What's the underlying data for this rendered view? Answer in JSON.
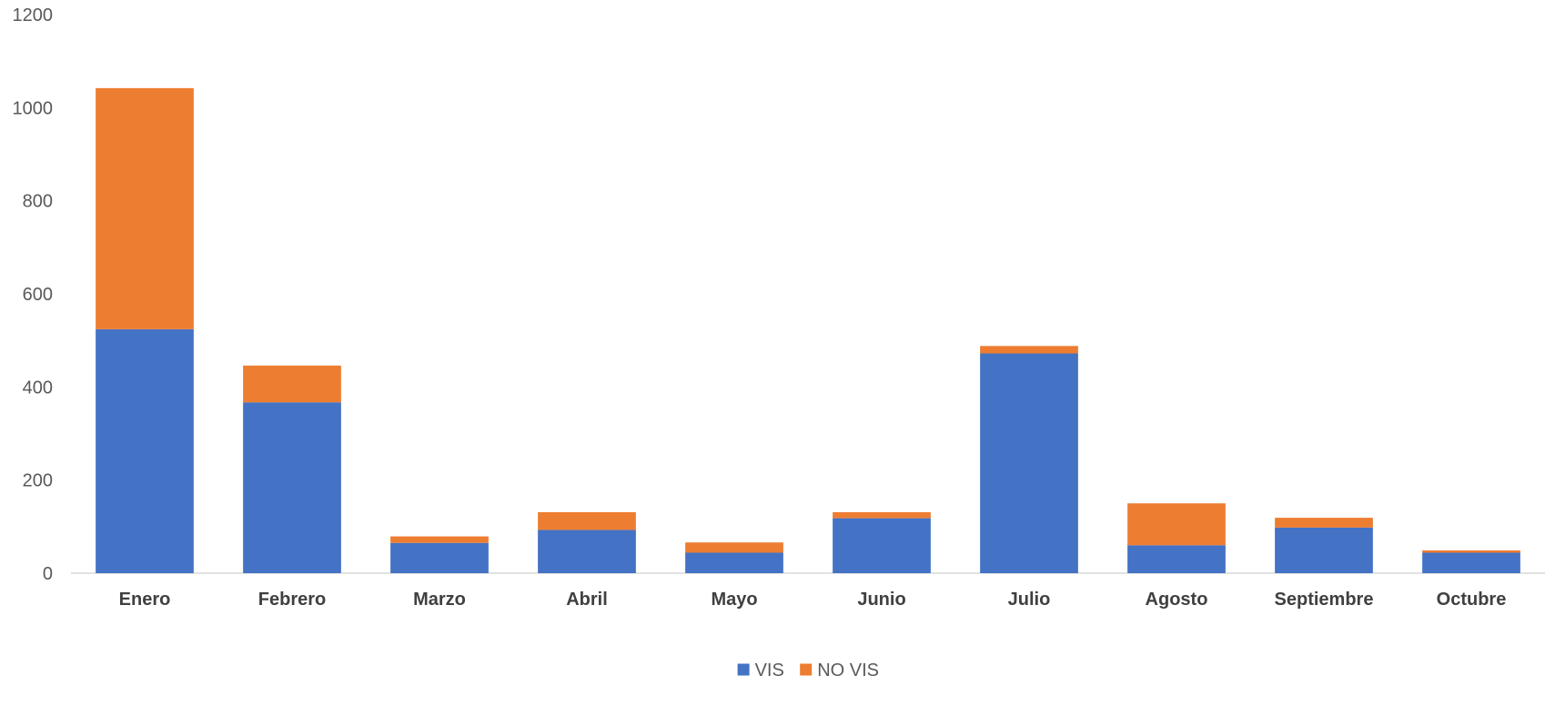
{
  "chart_data": {
    "type": "bar",
    "stacked": true,
    "categories": [
      "Enero",
      "Febrero",
      "Marzo",
      "Abril",
      "Mayo",
      "Junio",
      "Julio",
      "Agosto",
      "Septiembre",
      "Octubre"
    ],
    "series": [
      {
        "name": "VIS",
        "color": "#4472c4",
        "values": [
          524,
          367,
          65,
          93,
          44,
          118,
          472,
          60,
          98,
          44
        ]
      },
      {
        "name": "NO VIS",
        "color": "#ed7d31",
        "values": [
          518,
          79,
          14,
          38,
          22,
          13,
          16,
          90,
          21,
          5
        ]
      }
    ],
    "ylim": [
      0,
      1200
    ],
    "yticks": [
      0,
      200,
      400,
      600,
      800,
      1000,
      1200
    ],
    "grid": false,
    "legend_position": "bottom"
  }
}
